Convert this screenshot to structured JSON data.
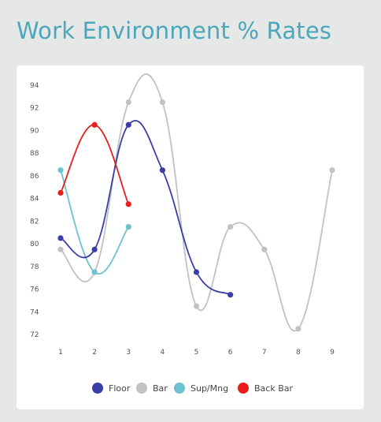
{
  "page": {
    "title": "Work Environment % Rates"
  },
  "chart_data": {
    "type": "line",
    "title": "",
    "xlabel": "",
    "ylabel": "",
    "x": [
      1,
      2,
      3,
      4,
      5,
      6,
      7,
      8,
      9
    ],
    "xlim": [
      1,
      9
    ],
    "ylim": [
      72,
      94
    ],
    "y_ticks": [
      72,
      74,
      76,
      78,
      80,
      82,
      84,
      86,
      88,
      90,
      92,
      94
    ],
    "x_ticks": [
      1,
      2,
      3,
      4,
      5,
      6,
      7,
      8,
      9
    ],
    "grid": false,
    "legend_position": "bottom",
    "series": [
      {
        "name": "Floor",
        "color": "#3a3fa8",
        "x": [
          1,
          2,
          3,
          4,
          5,
          6
        ],
        "values": [
          80.5,
          79.5,
          90.5,
          86.5,
          77.5,
          75.5
        ]
      },
      {
        "name": "Bar",
        "color": "#c2c2c2",
        "x": [
          1,
          2,
          3,
          4,
          5,
          6,
          7,
          8,
          9
        ],
        "values": [
          79.5,
          77.5,
          92.5,
          92.5,
          74.5,
          81.5,
          79.5,
          72.5,
          86.5
        ]
      },
      {
        "name": "Sup/Mng",
        "color": "#6cc2cf",
        "x": [
          1,
          2,
          3
        ],
        "values": [
          86.5,
          77.5,
          81.5
        ]
      },
      {
        "name": "Back Bar",
        "color": "#e81d1d",
        "x": [
          1,
          2,
          3
        ],
        "values": [
          84.5,
          90.5,
          83.5
        ]
      }
    ]
  }
}
